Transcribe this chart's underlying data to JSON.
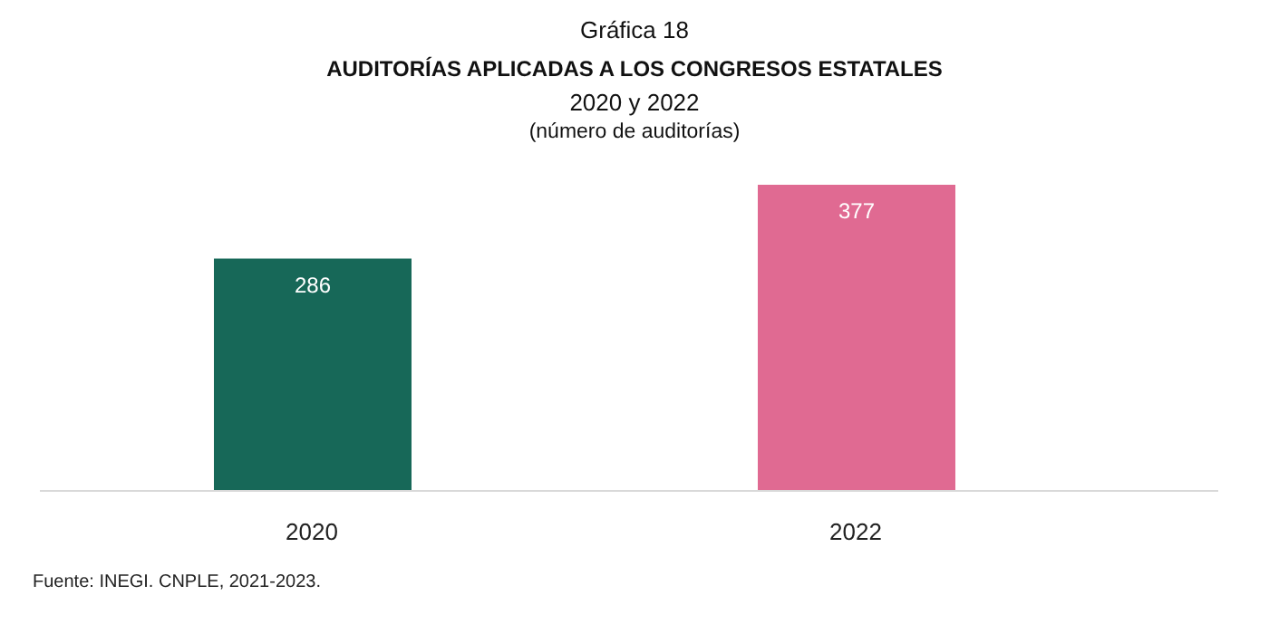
{
  "chart_data": {
    "type": "bar",
    "title": "Gráfica 18",
    "subtitle": "AUDITORÍAS APLICADAS A LOS CONGRESOS ESTATALES",
    "annotations": [
      "2020 y 2022",
      "(número de auditorías)",
      "Fuente: INEGI. CNPLE, 2021-2023."
    ],
    "categories": [
      "2020",
      "2022"
    ],
    "values": [
      286,
      377
    ],
    "colors": [
      "#176858",
      "#e06a92"
    ],
    "data_labels": true,
    "legend": false,
    "grid": false,
    "tick_labels": "x"
  }
}
